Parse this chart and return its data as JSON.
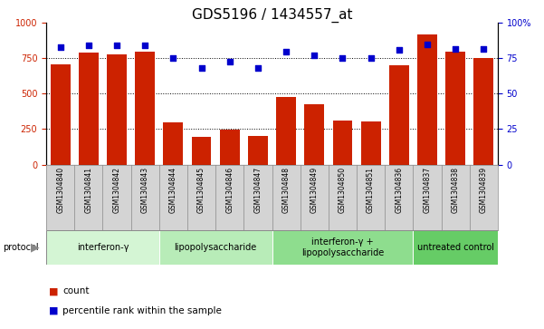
{
  "title": "GDS5196 / 1434557_at",
  "samples": [
    "GSM1304840",
    "GSM1304841",
    "GSM1304842",
    "GSM1304843",
    "GSM1304844",
    "GSM1304845",
    "GSM1304846",
    "GSM1304847",
    "GSM1304848",
    "GSM1304849",
    "GSM1304850",
    "GSM1304851",
    "GSM1304836",
    "GSM1304837",
    "GSM1304838",
    "GSM1304839"
  ],
  "counts": [
    710,
    790,
    780,
    800,
    300,
    195,
    248,
    200,
    480,
    425,
    310,
    305,
    700,
    920,
    800,
    755
  ],
  "percentiles": [
    83,
    84,
    84,
    84,
    75,
    68,
    73,
    68,
    80,
    77,
    75,
    75,
    81,
    85,
    82,
    82
  ],
  "groups": [
    {
      "label": "interferon-γ",
      "start": 0,
      "end": 4,
      "color": "#d4f5d4"
    },
    {
      "label": "lipopolysaccharide",
      "start": 4,
      "end": 8,
      "color": "#b8ecb8"
    },
    {
      "label": "interferon-γ +\nlipopolysaccharide",
      "start": 8,
      "end": 13,
      "color": "#8edd8e"
    },
    {
      "label": "untreated control",
      "start": 13,
      "end": 16,
      "color": "#66cc66"
    }
  ],
  "bar_color": "#cc2200",
  "dot_color": "#0000cc",
  "left_ylim": [
    0,
    1000
  ],
  "right_ylim": [
    0,
    100
  ],
  "left_yticks": [
    0,
    250,
    500,
    750,
    1000
  ],
  "right_yticks": [
    0,
    25,
    50,
    75,
    100
  ],
  "grid_values": [
    250,
    500,
    750
  ],
  "sample_bg": "#d4d4d4",
  "title_fontsize": 11,
  "tick_fontsize": 7,
  "sample_fontsize": 5.5,
  "proto_fontsize": 7,
  "legend_fontsize": 7.5
}
